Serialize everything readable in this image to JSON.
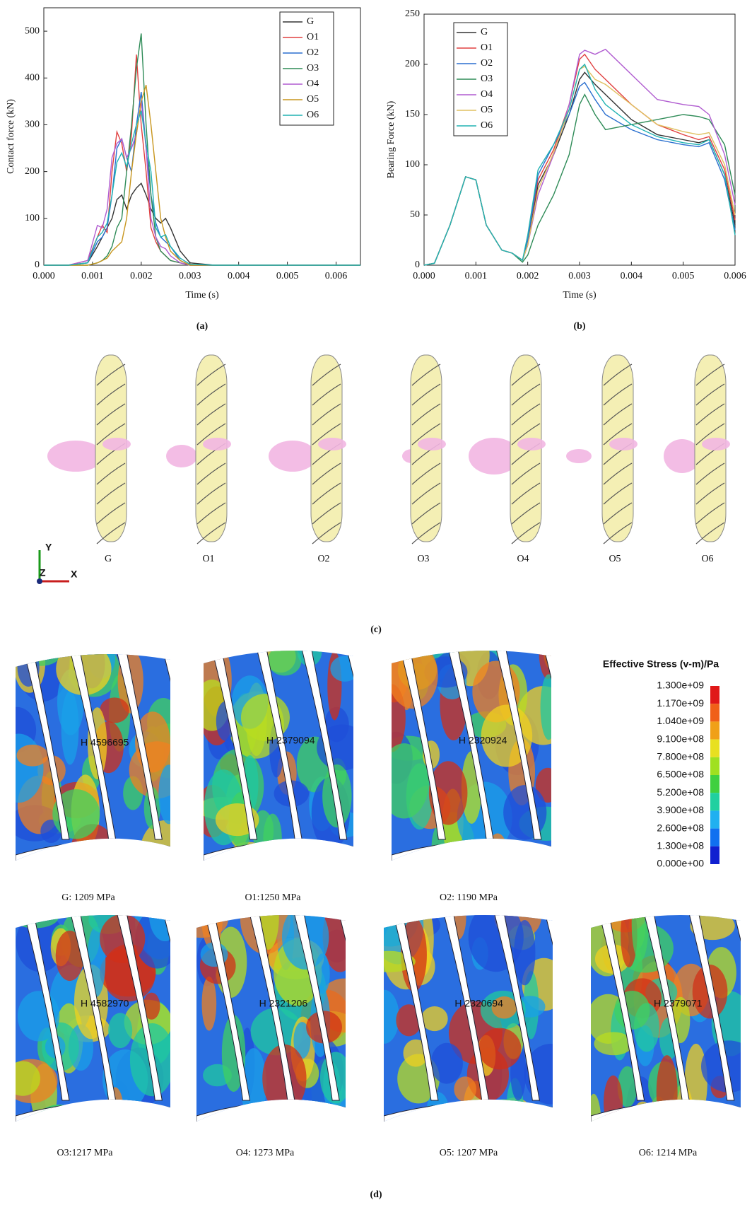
{
  "chart_data": [
    {
      "type": "line",
      "x_label": "Time (s)",
      "y_label": "Contact force (kN)",
      "caption": "(a)",
      "x": [
        0,
        0.0005,
        0.0009,
        0.0011,
        0.0012,
        0.0013,
        0.0014,
        0.0015,
        0.0016,
        0.0017,
        0.0018,
        0.0019,
        0.002,
        0.0021,
        0.0022,
        0.0023,
        0.0024,
        0.0025,
        0.0026,
        0.0028,
        0.003,
        0.0035,
        0.0065
      ],
      "xlim": [
        0,
        0.0065
      ],
      "xticks": [
        {
          "value": 0,
          "label": "0.000"
        },
        {
          "value": 0.001,
          "label": "0.001"
        },
        {
          "value": 0.002,
          "label": "0.002"
        },
        {
          "value": 0.003,
          "label": "0.003"
        },
        {
          "value": 0.004,
          "label": "0.004"
        },
        {
          "value": 0.005,
          "label": "0.005"
        },
        {
          "value": 0.006,
          "label": "0.006"
        }
      ],
      "ylim": [
        0,
        550
      ],
      "yticks": [
        0,
        100,
        200,
        300,
        400,
        500
      ],
      "legend": "upper right",
      "series": [
        {
          "name": "G",
          "color": "#333333",
          "values": [
            0,
            0,
            5,
            40,
            60,
            80,
            100,
            140,
            150,
            120,
            150,
            165,
            175,
            150,
            120,
            100,
            90,
            100,
            80,
            30,
            5,
            0,
            0
          ]
        },
        {
          "name": "O1",
          "color": "#e04040",
          "values": [
            0,
            0,
            10,
            60,
            85,
            70,
            200,
            285,
            260,
            200,
            280,
            450,
            300,
            200,
            80,
            50,
            30,
            20,
            10,
            5,
            0,
            0,
            0
          ]
        },
        {
          "name": "O2",
          "color": "#2a6fcf",
          "values": [
            0,
            0,
            5,
            50,
            60,
            80,
            150,
            250,
            270,
            230,
            200,
            300,
            370,
            250,
            150,
            90,
            60,
            50,
            40,
            10,
            0,
            0,
            0
          ]
        },
        {
          "name": "O3",
          "color": "#2e8b57",
          "values": [
            0,
            0,
            0,
            5,
            10,
            20,
            40,
            80,
            100,
            200,
            300,
            420,
            495,
            300,
            150,
            60,
            30,
            20,
            10,
            5,
            0,
            0,
            0
          ]
        },
        {
          "name": "O4",
          "color": "#b05cd0",
          "values": [
            0,
            0,
            10,
            85,
            80,
            120,
            230,
            260,
            270,
            230,
            250,
            280,
            350,
            250,
            100,
            60,
            40,
            35,
            20,
            5,
            0,
            0,
            0
          ]
        },
        {
          "name": "O5",
          "color": "#c8961e",
          "values": [
            0,
            0,
            0,
            5,
            10,
            15,
            30,
            40,
            50,
            100,
            200,
            280,
            350,
            385,
            300,
            200,
            100,
            60,
            30,
            10,
            0,
            0,
            0
          ]
        },
        {
          "name": "O6",
          "color": "#20b2b2",
          "values": [
            0,
            0,
            5,
            60,
            70,
            90,
            150,
            220,
            240,
            210,
            260,
            300,
            330,
            260,
            200,
            80,
            60,
            65,
            40,
            15,
            2,
            0,
            0
          ]
        }
      ]
    },
    {
      "type": "line",
      "x_label": "Time (s)",
      "y_label": "Bearing Force (kN)",
      "caption": "(b)",
      "x": [
        0,
        0.0002,
        0.0005,
        0.0008,
        0.001,
        0.0012,
        0.0015,
        0.0017,
        0.0019,
        0.002,
        0.0022,
        0.0025,
        0.0028,
        0.003,
        0.0031,
        0.0033,
        0.0035,
        0.004,
        0.0045,
        0.005,
        0.0053,
        0.0055,
        0.0058,
        0.006
      ],
      "xlim": [
        0,
        0.006
      ],
      "xticks": [
        {
          "value": 0,
          "label": "0.000"
        },
        {
          "value": 0.001,
          "label": "0.001"
        },
        {
          "value": 0.002,
          "label": "0.002"
        },
        {
          "value": 0.003,
          "label": "0.003"
        },
        {
          "value": 0.004,
          "label": "0.004"
        },
        {
          "value": 0.005,
          "label": "0.005"
        },
        {
          "value": 0.006,
          "label": "0.006"
        }
      ],
      "ylim": [
        0,
        250
      ],
      "yticks": [
        0,
        50,
        100,
        150,
        200,
        250
      ],
      "legend": "upper left",
      "series": [
        {
          "name": "G",
          "color": "#333333",
          "values": [
            0,
            2,
            40,
            88,
            85,
            40,
            15,
            12,
            5,
            20,
            80,
            110,
            150,
            185,
            192,
            180,
            170,
            145,
            130,
            125,
            122,
            125,
            90,
            40
          ]
        },
        {
          "name": "O1",
          "color": "#e04040",
          "values": [
            0,
            2,
            40,
            88,
            85,
            40,
            15,
            12,
            5,
            25,
            85,
            115,
            160,
            205,
            210,
            195,
            185,
            160,
            140,
            130,
            125,
            128,
            95,
            45
          ]
        },
        {
          "name": "O2",
          "color": "#2a6fcf",
          "values": [
            0,
            2,
            40,
            88,
            85,
            40,
            15,
            12,
            5,
            25,
            90,
            120,
            150,
            178,
            182,
            165,
            150,
            135,
            125,
            120,
            118,
            122,
            85,
            35
          ]
        },
        {
          "name": "O3",
          "color": "#2e8b57",
          "values": [
            0,
            2,
            40,
            88,
            85,
            40,
            15,
            12,
            3,
            10,
            40,
            70,
            110,
            160,
            170,
            150,
            135,
            140,
            145,
            150,
            148,
            145,
            120,
            70
          ]
        },
        {
          "name": "O4",
          "color": "#b05cd0",
          "values": [
            0,
            2,
            40,
            88,
            85,
            40,
            15,
            12,
            5,
            20,
            70,
            110,
            160,
            210,
            214,
            210,
            215,
            190,
            165,
            160,
            158,
            150,
            110,
            60
          ]
        },
        {
          "name": "O5",
          "color": "#e0c060",
          "values": [
            0,
            2,
            40,
            88,
            85,
            40,
            15,
            12,
            5,
            20,
            75,
            112,
            155,
            195,
            198,
            185,
            180,
            160,
            140,
            133,
            130,
            132,
            100,
            50
          ]
        },
        {
          "name": "O6",
          "color": "#20b2b2",
          "values": [
            0,
            2,
            40,
            88,
            85,
            40,
            15,
            12,
            5,
            30,
            95,
            120,
            155,
            195,
            200,
            175,
            160,
            140,
            128,
            122,
            120,
            125,
            90,
            30
          ]
        }
      ]
    }
  ],
  "panel_c": {
    "caption": "(c)",
    "labels": [
      "G",
      "O1",
      "O2",
      "O3",
      "O4",
      "O5",
      "O6"
    ],
    "axes": [
      "Y",
      "Z",
      "X"
    ]
  },
  "panel_d": {
    "caption": "(d)",
    "images": [
      {
        "label": "G: 1209 MPa",
        "annotation": "H 4596695"
      },
      {
        "label": "O1:1250 MPa",
        "annotation": "H 2379094"
      },
      {
        "label": "O2: 1190 MPa",
        "annotation": "H 2320924"
      },
      {
        "label": "O3:1217 MPa",
        "annotation": "H 4582970"
      },
      {
        "label": "O4: 1273 MPa",
        "annotation": "H 2321206"
      },
      {
        "label": "O5: 1207 MPa",
        "annotation": "H 2320694"
      },
      {
        "label": "O6: 1214 MPa",
        "annotation": "H 2379071"
      }
    ],
    "colorbar": {
      "title": "Effective Stress (v-m)/Pa",
      "labels": [
        "1.300e+09",
        "1.170e+09",
        "1.040e+09",
        "9.100e+08",
        "7.800e+08",
        "6.500e+08",
        "5.200e+08",
        "3.900e+08",
        "2.600e+08",
        "1.300e+08",
        "0.000e+00"
      ]
    }
  }
}
